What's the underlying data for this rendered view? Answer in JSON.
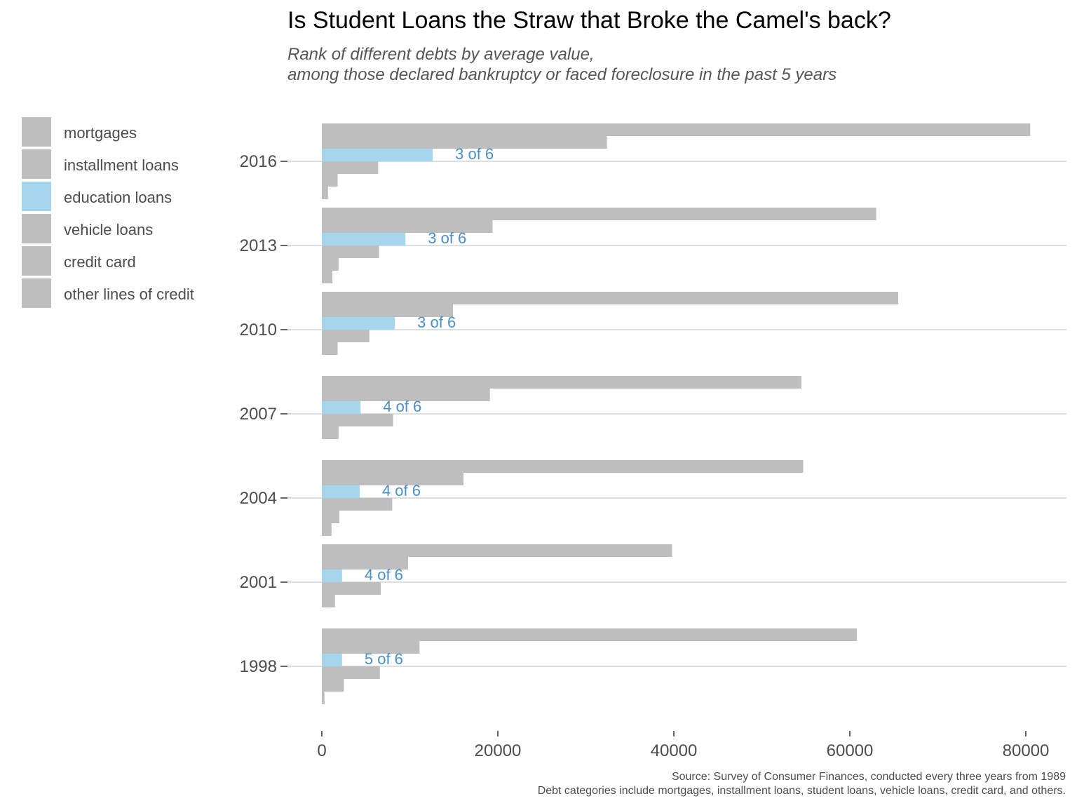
{
  "chart_data": {
    "type": "bar",
    "orientation": "horizontal",
    "title": "Is Student Loans the Straw that Broke the Camel's back?",
    "subtitle_lines": [
      "Rank of different debts by average value,",
      "among those declared bankruptcy or faced foreclosure in the past 5 years"
    ],
    "xlabel": "",
    "ylabel": "",
    "xlim": [
      0,
      85000
    ],
    "x_ticks": [
      0,
      20000,
      40000,
      60000,
      80000
    ],
    "grid": true,
    "legend_position": "left",
    "categories": [
      "2016",
      "2013",
      "2010",
      "2007",
      "2004",
      "2001",
      "1998"
    ],
    "series": [
      {
        "name": "mortgages",
        "color": "#bebebe",
        "values": [
          80500,
          63000,
          65500,
          54500,
          54700,
          39800,
          60800
        ]
      },
      {
        "name": "installment loans",
        "color": "#bebebe",
        "values": [
          32400,
          19400,
          14900,
          19100,
          16100,
          9800,
          11100
        ]
      },
      {
        "name": "education loans",
        "color": "#a6d5ee",
        "values": [
          12600,
          9500,
          8300,
          4400,
          4300,
          2300,
          2300
        ]
      },
      {
        "name": "vehicle loans",
        "color": "#bebebe",
        "values": [
          6400,
          6500,
          5400,
          8100,
          8000,
          6700,
          6600
        ]
      },
      {
        "name": "credit card",
        "color": "#bebebe",
        "values": [
          1800,
          1900,
          1800,
          1900,
          2000,
          1500,
          2500
        ]
      },
      {
        "name": "other lines of credit",
        "color": "#bebebe",
        "values": [
          700,
          1200,
          0,
          0,
          1100,
          0,
          300
        ]
      }
    ],
    "annotations": [
      "3 of 6",
      "3 of 6",
      "3 of 6",
      "4 of 6",
      "4 of 6",
      "4 of 6",
      "5 of 6"
    ],
    "annotation_color": "#4a8fc7",
    "caption_lines": [
      "Source: Survey of Consumer Finances, conducted every three years from 1989",
      "Debt categories include mortgages, installment loans, student loans, vehicle loans, credit card, and others."
    ]
  }
}
